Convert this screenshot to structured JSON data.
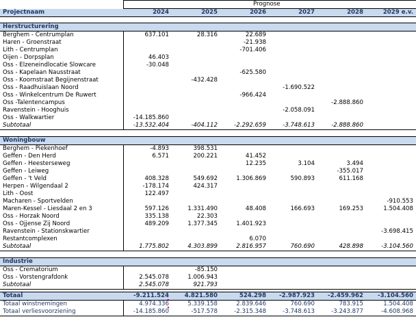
{
  "header": {
    "prognose_label": "Prognose",
    "col_label": "Projectnaam",
    "years": [
      "2024",
      "2025",
      "2026",
      "2027",
      "2028",
      "2029 e.v."
    ]
  },
  "sections": [
    {
      "title": "Herstructurering",
      "rows": [
        {
          "name": "Berghem - Centrumplan",
          "values": [
            "637.101",
            "28.316",
            "22.689",
            "",
            "",
            ""
          ]
        },
        {
          "name": "Haren - Groenstraat",
          "values": [
            "",
            "",
            "-21.938",
            "",
            "",
            ""
          ]
        },
        {
          "name": "Lith - Centrumplan",
          "values": [
            "",
            "",
            "-701.406",
            "",
            "",
            ""
          ]
        },
        {
          "name": "Oijen - Dorpsplan",
          "values": [
            "46.403",
            "",
            "",
            "",
            "",
            ""
          ]
        },
        {
          "name": "Oss - Elzeneindlocatie Slowcare",
          "values": [
            "-30.048",
            "",
            "",
            "",
            "",
            ""
          ]
        },
        {
          "name": "Oss - Kapelaan Nausstraat",
          "values": [
            "",
            "",
            "-625.580",
            "",
            "",
            ""
          ]
        },
        {
          "name": "Oss - Koornstraat Begijnenstraat",
          "values": [
            "",
            "-432.428",
            "",
            "",
            "",
            ""
          ]
        },
        {
          "name": "Oss - Raadhuislaan Noord",
          "values": [
            "",
            "",
            "",
            "-1.690.522",
            "",
            ""
          ]
        },
        {
          "name": "Oss - Winkelcentrum De Ruwert",
          "values": [
            "",
            "",
            "-966.424",
            "",
            "",
            ""
          ]
        },
        {
          "name": "Oss -Talentencampus",
          "values": [
            "",
            "",
            "",
            "",
            "-2.888.860",
            ""
          ]
        },
        {
          "name": "Ravenstein - Hooghuis",
          "values": [
            "",
            "",
            "",
            "-2.058.091",
            "",
            ""
          ]
        },
        {
          "name": "Oss - Walkwartier",
          "values": [
            "-14.185.860",
            "",
            "",
            "",
            "",
            ""
          ]
        }
      ],
      "subtotal_label": "Subtotaal",
      "subtotal": [
        "-13.532.404",
        "-404.112",
        "-2.292.659",
        "-3.748.613",
        "-2.888.860",
        ""
      ]
    },
    {
      "title": "Woningbouw",
      "rows": [
        {
          "name": "Berghem - Piekenhoef",
          "values": [
            "-4.893",
            "398.531",
            "",
            "",
            "",
            ""
          ]
        },
        {
          "name": "Geffen - Den Herd",
          "values": [
            "6.571",
            "200.221",
            "41.452",
            "",
            "",
            ""
          ]
        },
        {
          "name": "Geffen - Heesterseweg",
          "values": [
            "",
            "",
            "12.235",
            "3.104",
            "3.494",
            ""
          ]
        },
        {
          "name": "Geffen - Leiweg",
          "values": [
            "",
            "",
            "",
            "",
            "-355.017",
            ""
          ]
        },
        {
          "name": "Geffen - 't Veld",
          "values": [
            "408.328",
            "549.692",
            "1.306.869",
            "590.893",
            "611.168",
            ""
          ]
        },
        {
          "name": "Herpen - Wilgendaal 2",
          "values": [
            "-178.174",
            "424.317",
            "",
            "",
            "",
            ""
          ]
        },
        {
          "name": "Lith - Oost",
          "values": [
            "122.497",
            "",
            "",
            "",
            "",
            ""
          ]
        },
        {
          "name": "Macharen - Sportvelden",
          "values": [
            "",
            "",
            "",
            "",
            "",
            "-910.553"
          ]
        },
        {
          "name": "Maren-Kessel - Liesdaal 2 en 3",
          "values": [
            "597.126",
            "1.331.490",
            "48.408",
            "166.693",
            "169.253",
            "1.504.408"
          ]
        },
        {
          "name": "Oss - Horzak Noord",
          "values": [
            "335.138",
            "22.303",
            "",
            "",
            "",
            ""
          ]
        },
        {
          "name": "Oss - Ojjense Zij Noord",
          "values": [
            "489.209",
            "1.377.345",
            "1.401.923",
            "",
            "",
            ""
          ]
        },
        {
          "name": "Ravenstein - Stationskwartier",
          "values": [
            "",
            "",
            "",
            "",
            "",
            "-3.698.415"
          ]
        },
        {
          "name": "Restantcomplexen",
          "values": [
            "",
            "",
            "6.070",
            "",
            "",
            ""
          ]
        }
      ],
      "subtotal_label": "Subtotaal",
      "subtotal": [
        "1.775.802",
        "4.303.899",
        "2.816.957",
        "760.690",
        "428.898",
        "-3.104.560"
      ]
    },
    {
      "title": "Industrie",
      "rows": [
        {
          "name": "Oss - Crematorium",
          "values": [
            "",
            "-85.150",
            "",
            "",
            "",
            ""
          ]
        },
        {
          "name": "Oss - Vorstengrafdonk",
          "values": [
            "2.545.078",
            "1.006.943",
            "",
            "",
            "",
            ""
          ]
        }
      ],
      "subtotal_label": "Subtotaal",
      "subtotal": [
        "2.545.078",
        "921.793",
        "",
        "",
        "",
        ""
      ]
    }
  ],
  "totals": {
    "total_label": "Totaal",
    "total": [
      "-9.211.524",
      "4.821.580",
      "524.298",
      "-2.987.923",
      "-2.459.962",
      "-3.104.560"
    ],
    "winst_label": "Totaal winstnemingen",
    "winst": [
      "4.974.336",
      "5.339.158",
      "2.839.646",
      "760.690",
      "783.915",
      "1.504.408"
    ],
    "verlies_label": "Totaal verliesvoorziening",
    "verlies": [
      "-14.185.860",
      "-517.578",
      "-2.315.348",
      "-3.748.613",
      "-3.243.877",
      "-4.608.968"
    ]
  },
  "colors": {
    "header_fill": "#c9d9ee",
    "header_text": "#1f3864",
    "comment_marker": "#c00080"
  }
}
